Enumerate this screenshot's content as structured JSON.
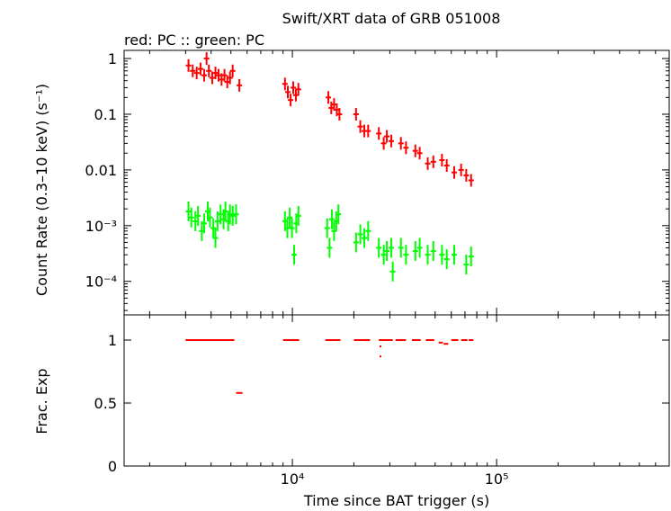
{
  "chart_data": [
    {
      "type": "scatter",
      "title": "Swift/XRT data of GRB 051008",
      "subtitle": "red: PC  :: green: PC",
      "ylabel": "Count Rate (0.3–10 keV) (s⁻¹)",
      "xlabel": "",
      "xscale": "log",
      "yscale": "log",
      "xlim": [
        1500,
        700000
      ],
      "ylim": [
        2.5e-05,
        1.4
      ],
      "yticks": [
        {
          "value": 1,
          "label": "1"
        },
        {
          "value": 0.1,
          "label": "0.1"
        },
        {
          "value": 0.01,
          "label": "0.01"
        },
        {
          "value": 0.001,
          "label": "10⁻³"
        },
        {
          "value": 0.0001,
          "label": "10⁻⁴"
        }
      ],
      "series": [
        {
          "color": "#ff0000",
          "points": [
            [
              3100,
              0.75
            ],
            [
              3250,
              0.6
            ],
            [
              3400,
              0.55
            ],
            [
              3550,
              0.65
            ],
            [
              3700,
              0.5
            ],
            [
              3800,
              1.0
            ],
            [
              3900,
              0.6
            ],
            [
              4050,
              0.45
            ],
            [
              4200,
              0.55
            ],
            [
              4350,
              0.5
            ],
            [
              4500,
              0.42
            ],
            [
              4650,
              0.5
            ],
            [
              4800,
              0.38
            ],
            [
              4950,
              0.45
            ],
            [
              5100,
              0.6
            ],
            [
              5500,
              0.33
            ],
            [
              9200,
              0.35
            ],
            [
              9500,
              0.25
            ],
            [
              9800,
              0.18
            ],
            [
              10100,
              0.3
            ],
            [
              10400,
              0.22
            ],
            [
              10700,
              0.28
            ],
            [
              15000,
              0.2
            ],
            [
              15500,
              0.13
            ],
            [
              16000,
              0.15
            ],
            [
              16500,
              0.12
            ],
            [
              17000,
              0.1
            ],
            [
              20500,
              0.1
            ],
            [
              21500,
              0.06
            ],
            [
              22500,
              0.05
            ],
            [
              23500,
              0.05
            ],
            [
              26500,
              0.045
            ],
            [
              28000,
              0.03
            ],
            [
              29000,
              0.04
            ],
            [
              30500,
              0.033
            ],
            [
              34000,
              0.03
            ],
            [
              36000,
              0.025
            ],
            [
              40000,
              0.022
            ],
            [
              42000,
              0.02
            ],
            [
              46000,
              0.013
            ],
            [
              49000,
              0.014
            ],
            [
              54000,
              0.015
            ],
            [
              57000,
              0.012
            ],
            [
              62000,
              0.009
            ],
            [
              67000,
              0.01
            ],
            [
              71000,
              0.008
            ],
            [
              75000,
              0.0065
            ]
          ]
        },
        {
          "color": "#00ff00",
          "points": [
            [
              3100,
              0.0018
            ],
            [
              3200,
              0.0014
            ],
            [
              3350,
              0.0012
            ],
            [
              3450,
              0.0015
            ],
            [
              3600,
              0.0008
            ],
            [
              3700,
              0.0011
            ],
            [
              3850,
              0.0018
            ],
            [
              3950,
              0.0014
            ],
            [
              4100,
              0.0009
            ],
            [
              4200,
              0.0006
            ],
            [
              4300,
              0.0012
            ],
            [
              4450,
              0.0016
            ],
            [
              4600,
              0.0013
            ],
            [
              4700,
              0.0018
            ],
            [
              4850,
              0.0012
            ],
            [
              4950,
              0.0016
            ],
            [
              5100,
              0.0015
            ],
            [
              5300,
              0.0016
            ],
            [
              9200,
              0.0012
            ],
            [
              9450,
              0.0009
            ],
            [
              9700,
              0.0014
            ],
            [
              9950,
              0.0009
            ],
            [
              10200,
              0.0003
            ],
            [
              10450,
              0.0011
            ],
            [
              10700,
              0.0015
            ],
            [
              14800,
              0.0009
            ],
            [
              15200,
              0.0004
            ],
            [
              15600,
              0.0013
            ],
            [
              16000,
              0.0008
            ],
            [
              16400,
              0.0012
            ],
            [
              16800,
              0.0016
            ],
            [
              20500,
              0.0005
            ],
            [
              21500,
              0.0007
            ],
            [
              22500,
              0.0006
            ],
            [
              23500,
              0.0008
            ],
            [
              26500,
              0.0004
            ],
            [
              28000,
              0.0003
            ],
            [
              29000,
              0.00035
            ],
            [
              30500,
              0.0004
            ],
            [
              31000,
              0.00015
            ],
            [
              34000,
              0.0004
            ],
            [
              36000,
              0.0003
            ],
            [
              40000,
              0.00035
            ],
            [
              42000,
              0.0004
            ],
            [
              46000,
              0.0003
            ],
            [
              49000,
              0.00035
            ],
            [
              54000,
              0.0003
            ],
            [
              57000,
              0.00025
            ],
            [
              62000,
              0.0003
            ],
            [
              71000,
              0.0002
            ],
            [
              75000,
              0.00028
            ]
          ]
        }
      ]
    },
    {
      "type": "scatter",
      "title": "",
      "xlabel": "Time since BAT trigger (s)",
      "ylabel": "Frac. Exp",
      "xscale": "log",
      "xlim": [
        1500,
        700000
      ],
      "ylim": [
        0,
        1.2
      ],
      "yticks": [
        {
          "value": 0,
          "label": "0"
        },
        {
          "value": 0.5,
          "label": "0.5"
        },
        {
          "value": 1,
          "label": "1"
        }
      ],
      "xticks": [
        {
          "value": 10000,
          "label": "10⁴"
        },
        {
          "value": 100000,
          "label": "10⁵"
        }
      ],
      "series": [
        {
          "color": "#ff0000",
          "segments": [
            [
              3000,
              5200,
              1.0
            ],
            [
              5300,
              5700,
              0.58
            ],
            [
              9000,
              10800,
              1.0
            ],
            [
              14500,
              17200,
              1.0
            ],
            [
              20000,
              24000,
              1.0
            ],
            [
              26500,
              31000,
              1.0
            ],
            [
              32000,
              36000,
              1.0
            ],
            [
              38500,
              42500,
              1.0
            ],
            [
              45000,
              49500,
              1.0
            ],
            [
              52000,
              54500,
              0.98
            ],
            [
              55000,
              58000,
              0.97
            ],
            [
              60000,
              65000,
              1.0
            ],
            [
              67000,
              72000,
              1.0
            ],
            [
              73000,
              77000,
              1.0
            ]
          ],
          "dots": [
            [
              27000,
              0.95
            ],
            [
              27000,
              0.87
            ]
          ]
        }
      ]
    }
  ]
}
